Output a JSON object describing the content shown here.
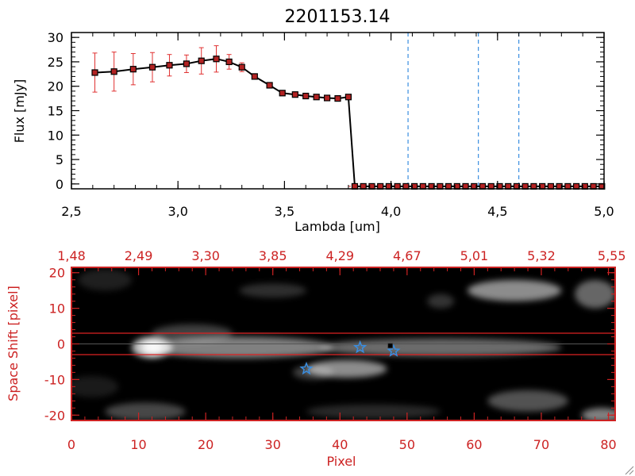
{
  "chart_data": [
    {
      "type": "line",
      "title": "2201153.14",
      "xlabel": "Lambda [um]",
      "ylabel": "Flux [mJy]",
      "xlim": [
        2.5,
        5.0
      ],
      "ylim": [
        -1,
        31
      ],
      "x_ticks": [
        "2.5",
        "3.0",
        "3.5",
        "4.0",
        "4.5",
        "5.0"
      ],
      "y_ticks": [
        "0",
        "5",
        "10",
        "15",
        "20",
        "25",
        "30"
      ],
      "grid": false,
      "line_color": "#000000",
      "marker_color": "#b22222",
      "errorbar_color": "#e03030",
      "vline_color": "#3a8ee0",
      "vlines": [
        4.08,
        4.41,
        4.6
      ],
      "series": [
        {
          "x": [
            2.61,
            2.7,
            2.79,
            2.88,
            2.96,
            3.04,
            3.11,
            3.18,
            3.24,
            3.3,
            3.36,
            3.43,
            3.49,
            3.55,
            3.6,
            3.65,
            3.7,
            3.75,
            3.8,
            3.83,
            3.87,
            3.91,
            3.95,
            3.99,
            4.03,
            4.07,
            4.11,
            4.15,
            4.19,
            4.23,
            4.27,
            4.31,
            4.35,
            4.39,
            4.43,
            4.47,
            4.51,
            4.55,
            4.59,
            4.63,
            4.67,
            4.71,
            4.75,
            4.79,
            4.83,
            4.87,
            4.91,
            4.95,
            4.99
          ],
          "y": [
            22.8,
            23.0,
            23.5,
            23.9,
            24.3,
            24.6,
            25.2,
            25.6,
            25.0,
            23.9,
            22.0,
            20.2,
            18.6,
            18.3,
            18.0,
            17.8,
            17.6,
            17.5,
            17.8,
            -0.5,
            -0.5,
            -0.5,
            -0.5,
            -0.5,
            -0.5,
            -0.5,
            -0.5,
            -0.5,
            -0.5,
            -0.5,
            -0.5,
            -0.5,
            -0.5,
            -0.5,
            -0.5,
            -0.5,
            -0.5,
            -0.5,
            -0.5,
            -0.5,
            -0.5,
            -0.5,
            -0.5,
            -0.5,
            -0.5,
            -0.5,
            -0.5,
            -0.5,
            -0.5
          ],
          "yerr": [
            4.0,
            4.0,
            3.2,
            3.0,
            2.2,
            1.8,
            2.7,
            2.7,
            1.5,
            0.9,
            0.5,
            0.3,
            0.4,
            0.3,
            0.2,
            0.2,
            0.2,
            0.2,
            0.2,
            0,
            0,
            0,
            0,
            0,
            0,
            0,
            0,
            0,
            0,
            0,
            0,
            0,
            0,
            0,
            0,
            0,
            0,
            0,
            0,
            0,
            0,
            0,
            0,
            0,
            0,
            0,
            0,
            0,
            0
          ]
        }
      ]
    },
    {
      "type": "heatmap",
      "xlabel": "Pixel",
      "ylabel": "Space Shift [pixel]",
      "xlim": [
        0,
        81
      ],
      "ylim": [
        -21.5,
        21.5
      ],
      "x_ticks": [
        0,
        10,
        20,
        30,
        40,
        50,
        60,
        70,
        80
      ],
      "y_ticks": [
        -20,
        -10,
        0,
        10,
        20
      ],
      "top_ticks": [
        "1.48",
        "2.49",
        "3.30",
        "3.85",
        "4.29",
        "4.67",
        "5.01",
        "5.32",
        "5.55"
      ],
      "axis_color": "#cc2222",
      "hlines": [
        3,
        -3
      ],
      "center_line": 0,
      "markers": [
        {
          "shape": "star",
          "x": 43,
          "y": -1,
          "color": "#3a8ee0"
        },
        {
          "shape": "star",
          "x": 48,
          "y": -2,
          "color": "#3a8ee0"
        },
        {
          "shape": "star",
          "x": 35,
          "y": -7,
          "color": "#3a8ee0"
        },
        {
          "shape": "square",
          "x": 47.5,
          "y": -0.5,
          "color": "#000000"
        }
      ],
      "emission": [
        {
          "x": 12,
          "y": -1,
          "sx": 3,
          "sy": 3,
          "a": 0.75
        },
        {
          "x": 25,
          "y": -1,
          "sx": 14,
          "sy": 3,
          "a": 0.5
        },
        {
          "x": 55,
          "y": -1,
          "sx": 18,
          "sy": 2.5,
          "a": 0.42
        },
        {
          "x": 18,
          "y": 3,
          "sx": 6,
          "sy": 2.5,
          "a": 0.25
        },
        {
          "x": 41,
          "y": -7,
          "sx": 6,
          "sy": 2.5,
          "a": 0.55
        },
        {
          "x": 36,
          "y": -8,
          "sx": 3,
          "sy": 2,
          "a": 0.25
        },
        {
          "x": 66,
          "y": 15,
          "sx": 7,
          "sy": 3,
          "a": 0.55
        },
        {
          "x": 78,
          "y": 14,
          "sx": 3,
          "sy": 4,
          "a": 0.4
        },
        {
          "x": 30,
          "y": 15,
          "sx": 5,
          "sy": 2,
          "a": 0.18
        },
        {
          "x": 5,
          "y": 18,
          "sx": 4,
          "sy": 3,
          "a": 0.12
        },
        {
          "x": 11,
          "y": -19,
          "sx": 6,
          "sy": 2.5,
          "a": 0.28
        },
        {
          "x": 45,
          "y": -19,
          "sx": 10,
          "sy": 2,
          "a": 0.16
        },
        {
          "x": 68,
          "y": -16,
          "sx": 6,
          "sy": 3,
          "a": 0.32
        },
        {
          "x": 79,
          "y": -20,
          "sx": 3,
          "sy": 2,
          "a": 0.5
        },
        {
          "x": 55,
          "y": 12,
          "sx": 2,
          "sy": 2,
          "a": 0.2
        },
        {
          "x": 3,
          "y": -12,
          "sx": 4,
          "sy": 3,
          "a": 0.1
        }
      ]
    }
  ]
}
